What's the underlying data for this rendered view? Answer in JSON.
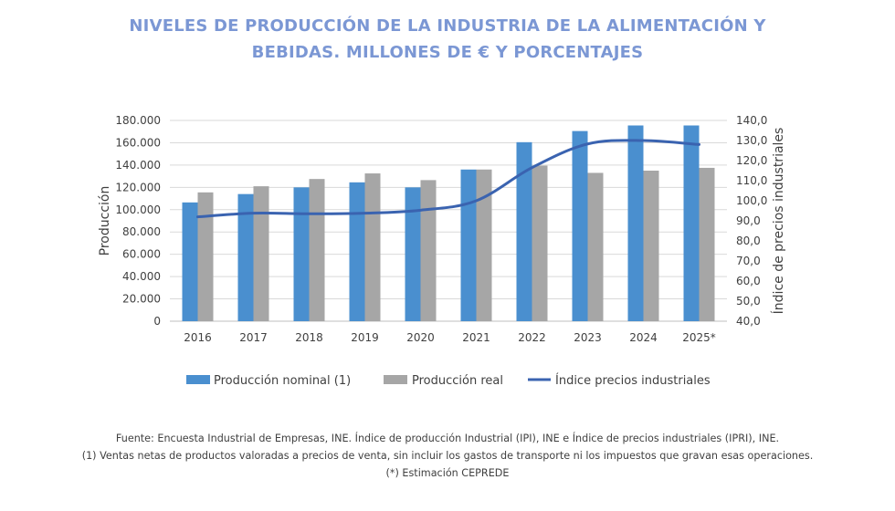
{
  "title": {
    "line1": "NIVELES DE PRODUCCIÓN DE LA INDUSTRIA DE LA ALIMENTACIÓN Y",
    "line2": "BEBIDAS. MILLONES DE € Y PORCENTAJES"
  },
  "footer": {
    "line1": "Fuente: Encuesta Industrial de Empresas, INE. Índice de producción Industrial (IPI), INE e Índice de precios industriales (IPRI), INE.",
    "line2": "(1) Ventas netas de productos valoradas a precios de venta, sin incluir los gastos de transporte ni los impuestos que gravan esas operaciones.",
    "line3": "(*) Estimación CEPREDE"
  },
  "colors": {
    "nominal": "#4a8fcf",
    "real": "#a6a6a6",
    "index": "#3a63b0",
    "grid": "#d9d9d9",
    "title": "#7b97d4"
  },
  "chart_data": {
    "type": "bar",
    "categories": [
      "2016",
      "2017",
      "2018",
      "2019",
      "2020",
      "2021",
      "2022",
      "2023",
      "2024",
      "2025*"
    ],
    "series": [
      {
        "name": "Producción nominal (1)",
        "type": "bar",
        "axis": "left",
        "values": [
          106500,
          114000,
          120000,
          124500,
          120000,
          136000,
          160500,
          170500,
          175500,
          175500
        ]
      },
      {
        "name": "Producción real",
        "type": "bar",
        "axis": "left",
        "values": [
          115500,
          121000,
          127500,
          132500,
          126500,
          136000,
          139500,
          133000,
          135000,
          137500
        ]
      },
      {
        "name": "Índice precios industriales",
        "type": "line",
        "axis": "right",
        "values": [
          92.0,
          93.8,
          93.5,
          93.8,
          95.3,
          100.0,
          116.5,
          128.3,
          130.0,
          128.0
        ]
      }
    ],
    "ylabel": "Producción",
    "ylabel_right": "Índice de precios industriales",
    "ylim": [
      0,
      180000
    ],
    "ylim_right": [
      40,
      140
    ],
    "yticks": [
      "0",
      "20.000",
      "40.000",
      "60.000",
      "80.000",
      "100.000",
      "120.000",
      "140.000",
      "160.000",
      "180.000"
    ],
    "yticks_right": [
      "40,0",
      "50,0",
      "60,0",
      "70,0",
      "80,0",
      "90,0",
      "100,0",
      "110,0",
      "120,0",
      "130,0",
      "140,0"
    ],
    "grid": true,
    "legend": "bottom"
  }
}
